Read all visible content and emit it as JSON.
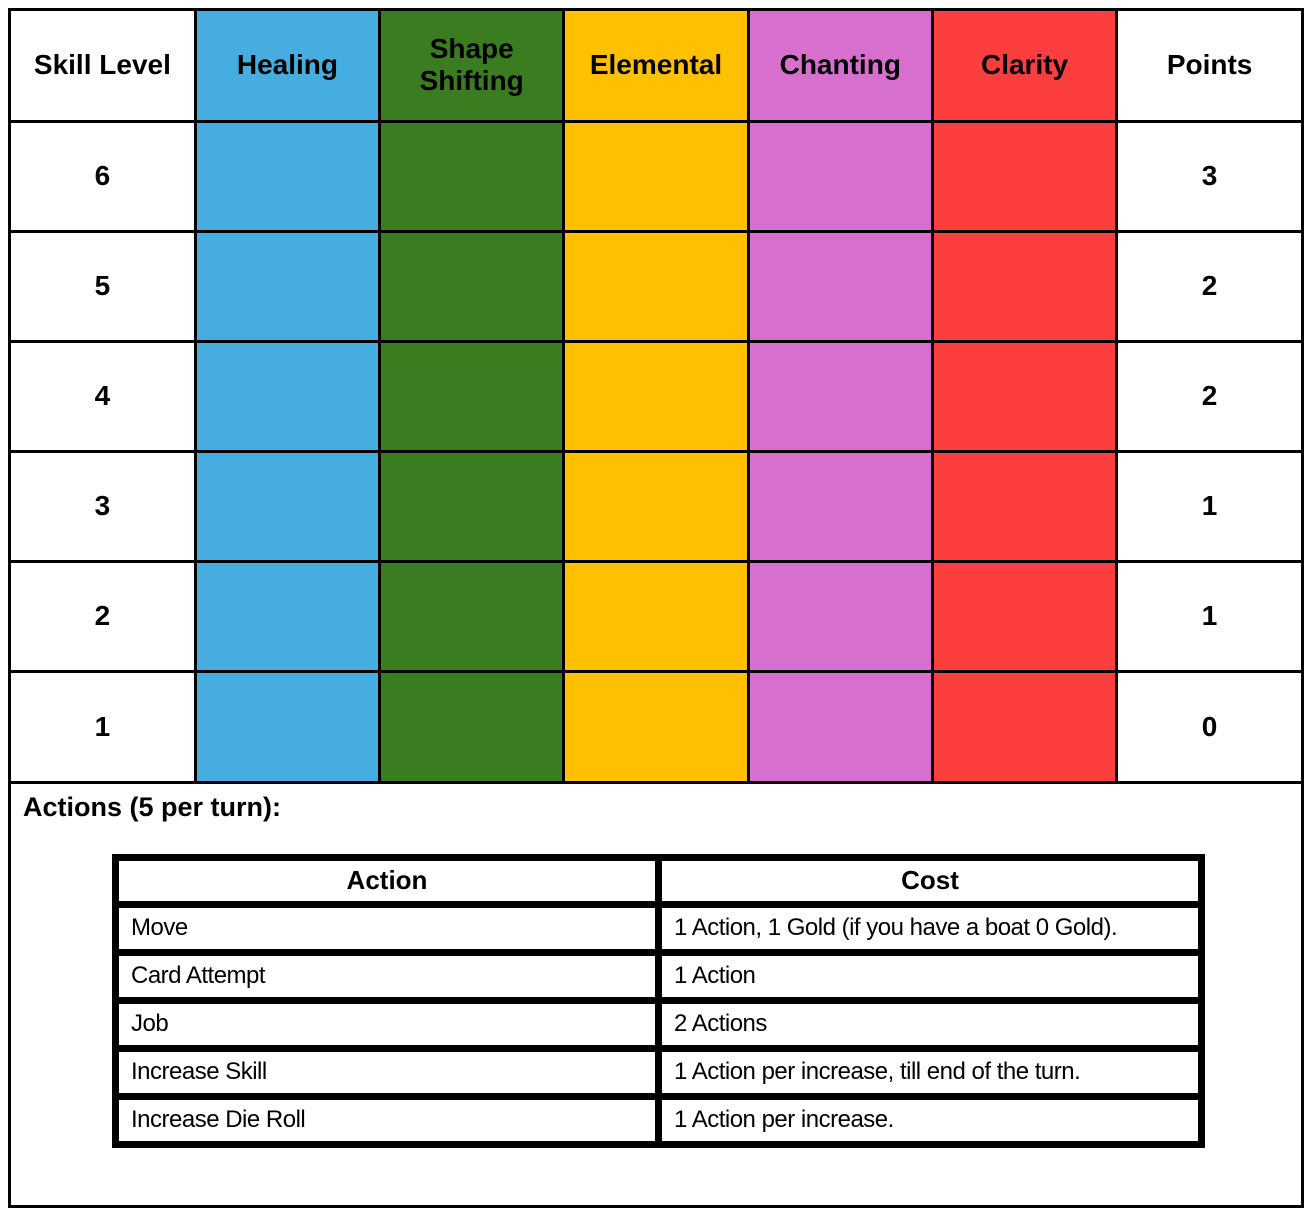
{
  "skill_table": {
    "columns": [
      {
        "label": "Skill Level",
        "color": "#ffffff"
      },
      {
        "label": "Healing",
        "color": "#45ade0"
      },
      {
        "label": "Shape Shifting",
        "color": "#3a7d21"
      },
      {
        "label": "Elemental",
        "color": "#ffc000"
      },
      {
        "label": "Chanting",
        "color": "#d76fce"
      },
      {
        "label": "Clarity",
        "color": "#fc3e3e"
      },
      {
        "label": "Points",
        "color": "#ffffff"
      }
    ],
    "rows": [
      {
        "level": "6",
        "points": "3"
      },
      {
        "level": "5",
        "points": "2"
      },
      {
        "level": "4",
        "points": "2"
      },
      {
        "level": "3",
        "points": "1"
      },
      {
        "level": "2",
        "points": "1"
      },
      {
        "level": "1",
        "points": "0"
      }
    ]
  },
  "actions": {
    "heading": "Actions (5 per turn):",
    "headers": [
      "Action",
      "Cost"
    ],
    "rows": [
      {
        "action": "Move",
        "cost": "1 Action, 1 Gold (if you have a boat 0 Gold)."
      },
      {
        "action": "Card Attempt",
        "cost": "1 Action"
      },
      {
        "action": "Job",
        "cost": "2 Actions"
      },
      {
        "action": "Increase Skill",
        "cost": "1 Action per increase, till end of the turn."
      },
      {
        "action": "Increase Die Roll",
        "cost": "1 Action per increase."
      }
    ]
  }
}
